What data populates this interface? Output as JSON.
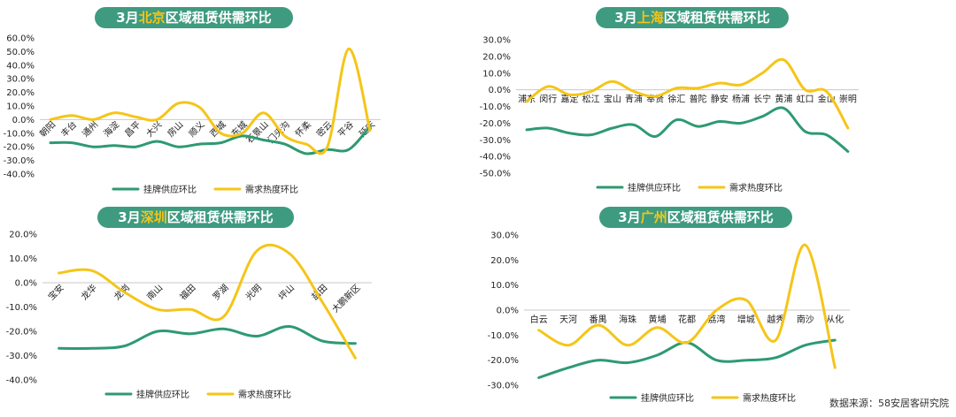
{
  "source": "数据来源：58安居客研究院",
  "colors": {
    "supply": "#2e9a72",
    "demand": "#f5c518",
    "pill": "#3e9b80"
  },
  "chart_data": [
    {
      "type": "line",
      "city": "北京",
      "title_prefix": "3月",
      "title_suffix": "区域租赁供需环比",
      "categories": [
        "朝阳",
        "丰台",
        "通州",
        "海淀",
        "昌平",
        "大兴",
        "房山",
        "顺义",
        "西城",
        "东城",
        "石景山",
        "门头沟",
        "怀柔",
        "密云",
        "平谷",
        "延庆"
      ],
      "ylim": [
        -0.4,
        0.6
      ],
      "yticks": [
        -0.4,
        -0.3,
        -0.2,
        -0.1,
        0.0,
        0.1,
        0.2,
        0.3,
        0.4,
        0.5,
        0.6
      ],
      "ytick_labels": [
        "-40.0%",
        "-30.0%",
        "-20.0%",
        "-10.0%",
        "0.0%",
        "10.0%",
        "20.0%",
        "30.0%",
        "40.0%",
        "50.0%",
        "60.0%"
      ],
      "series": [
        {
          "name": "挂牌供应环比",
          "values": [
            -0.17,
            -0.17,
            -0.2,
            -0.19,
            -0.2,
            -0.16,
            -0.2,
            -0.18,
            -0.17,
            -0.12,
            -0.15,
            -0.18,
            -0.25,
            -0.22,
            -0.22,
            -0.05
          ]
        },
        {
          "name": "需求热度环比",
          "values": [
            0.0,
            0.03,
            0.0,
            0.05,
            0.02,
            0.0,
            0.12,
            0.09,
            -0.1,
            -0.1,
            0.05,
            -0.12,
            -0.18,
            -0.2,
            0.52,
            -0.08
          ]
        }
      ],
      "legend": [
        "挂牌供应环比",
        "需求热度环比"
      ],
      "label_rotation": -45
    },
    {
      "type": "line",
      "city": "上海",
      "title_prefix": "3月",
      "title_suffix": "区域租赁供需环比",
      "categories": [
        "浦东",
        "闵行",
        "嘉定",
        "松江",
        "宝山",
        "青浦",
        "奉贤",
        "徐汇",
        "普陀",
        "静安",
        "杨浦",
        "长宁",
        "黄浦",
        "虹口",
        "金山",
        "崇明"
      ],
      "ylim": [
        -0.5,
        0.3
      ],
      "yticks": [
        -0.5,
        -0.4,
        -0.3,
        -0.2,
        -0.1,
        0.0,
        0.1,
        0.2,
        0.3
      ],
      "ytick_labels": [
        "-50.0%",
        "-40.0%",
        "-30.0%",
        "-20.0%",
        "-10.0%",
        "0.0%",
        "10.0%",
        "20.0%",
        "30.0%"
      ],
      "series": [
        {
          "name": "挂牌供应环比",
          "values": [
            -0.24,
            -0.23,
            -0.26,
            -0.27,
            -0.23,
            -0.21,
            -0.28,
            -0.18,
            -0.22,
            -0.19,
            -0.2,
            -0.16,
            -0.11,
            -0.25,
            -0.27,
            -0.37
          ]
        },
        {
          "name": "需求热度环比",
          "values": [
            -0.07,
            0.02,
            -0.03,
            -0.01,
            0.05,
            -0.01,
            -0.04,
            0.01,
            0.01,
            0.04,
            0.03,
            0.1,
            0.18,
            0.0,
            -0.01,
            -0.23
          ]
        }
      ],
      "legend": [
        "挂牌供应环比",
        "需求热度环比"
      ],
      "label_rotation": 0
    },
    {
      "type": "line",
      "city": "深圳",
      "title_prefix": "3月",
      "title_suffix": "区域租赁供需环比",
      "categories": [
        "宝安",
        "龙华",
        "龙岗",
        "南山",
        "福田",
        "罗湖",
        "光明",
        "坪山",
        "盐田",
        "大鹏新区"
      ],
      "ylim": [
        -0.4,
        0.2
      ],
      "yticks": [
        -0.4,
        -0.3,
        -0.2,
        -0.1,
        0.0,
        0.1,
        0.2
      ],
      "ytick_labels": [
        "-40.0%",
        "-30.0%",
        "-20.0%",
        "-10.0%",
        "0.0%",
        "10.0%",
        "20.0%"
      ],
      "series": [
        {
          "name": "挂牌供应环比",
          "values": [
            -0.27,
            -0.27,
            -0.26,
            -0.2,
            -0.21,
            -0.19,
            -0.22,
            -0.18,
            -0.24,
            -0.25
          ]
        },
        {
          "name": "需求热度环比",
          "values": [
            0.04,
            0.05,
            -0.04,
            -0.11,
            -0.11,
            -0.14,
            0.13,
            0.12,
            -0.08,
            -0.31
          ]
        }
      ],
      "legend": [
        "挂牌供应环比",
        "需求热度环比"
      ],
      "label_rotation": -45
    },
    {
      "type": "line",
      "city": "广州",
      "title_prefix": "3月",
      "title_suffix": "区域租赁供需环比",
      "categories": [
        "白云",
        "天河",
        "番禺",
        "海珠",
        "黄埔",
        "花都",
        "荔湾",
        "增城",
        "越秀",
        "南沙",
        "从化"
      ],
      "ylim": [
        -0.3,
        0.3
      ],
      "yticks": [
        -0.3,
        -0.2,
        -0.1,
        0.0,
        0.1,
        0.2,
        0.3
      ],
      "ytick_labels": [
        "-30.0%",
        "-20.0%",
        "-10.0%",
        "0.0%",
        "10.0%",
        "20.0%",
        "30.0%"
      ],
      "series": [
        {
          "name": "挂牌供应环比",
          "values": [
            -0.27,
            -0.23,
            -0.2,
            -0.21,
            -0.18,
            -0.13,
            -0.2,
            -0.2,
            -0.19,
            -0.14,
            -0.12
          ]
        },
        {
          "name": "需求热度环比",
          "values": [
            -0.08,
            -0.14,
            -0.06,
            -0.14,
            -0.07,
            -0.13,
            0.0,
            0.04,
            -0.12,
            0.26,
            -0.23
          ]
        }
      ],
      "legend": [
        "挂牌供应环比",
        "需求热度环比"
      ],
      "label_rotation": 0
    }
  ]
}
